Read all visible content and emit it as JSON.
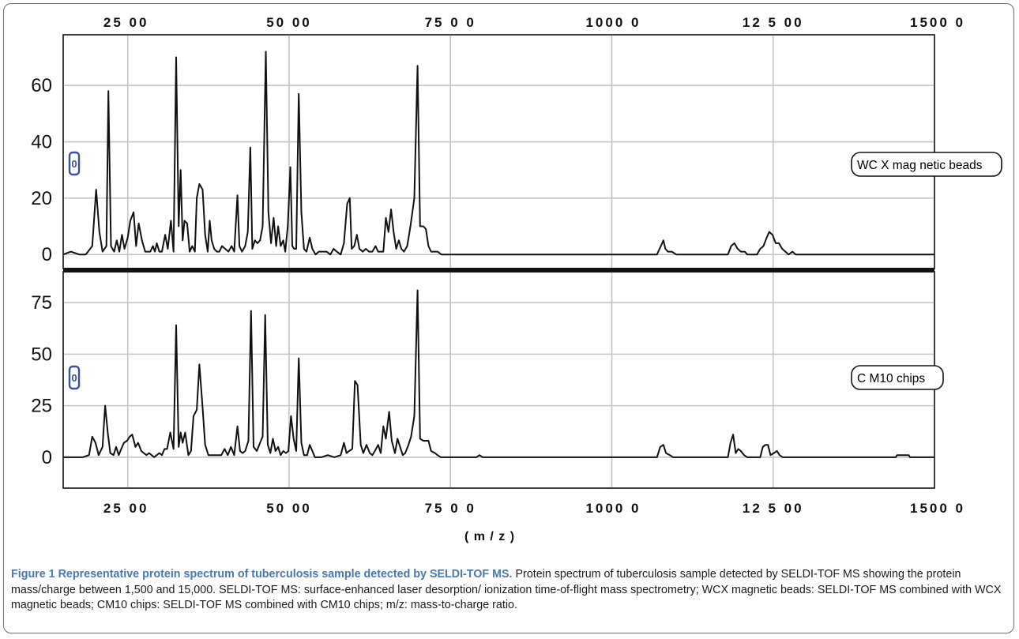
{
  "chart_data": [
    {
      "type": "line",
      "series_label": "WC X mag netic beads",
      "badge": "0",
      "xlim": [
        1500,
        15000
      ],
      "ylim": [
        -5,
        78
      ],
      "yticks": [
        "0",
        "20",
        "40",
        "60"
      ],
      "x_tick_labels": [
        "25 00",
        "50 00",
        "75 0 0",
        "1000 0",
        "12 5 00",
        "1500 0"
      ],
      "grid": true,
      "line_color": "#111111",
      "points": [
        [
          1500,
          0
        ],
        [
          1620,
          1
        ],
        [
          1750,
          0
        ],
        [
          1850,
          0
        ],
        [
          1950,
          3
        ],
        [
          2010,
          23
        ],
        [
          2060,
          8
        ],
        [
          2110,
          1
        ],
        [
          2170,
          3
        ],
        [
          2200,
          58
        ],
        [
          2240,
          3
        ],
        [
          2290,
          1
        ],
        [
          2330,
          5
        ],
        [
          2370,
          1
        ],
        [
          2410,
          7
        ],
        [
          2450,
          2
        ],
        [
          2500,
          6
        ],
        [
          2540,
          12
        ],
        [
          2590,
          15
        ],
        [
          2630,
          3
        ],
        [
          2670,
          11
        ],
        [
          2720,
          5
        ],
        [
          2770,
          1
        ],
        [
          2810,
          1
        ],
        [
          2850,
          1
        ],
        [
          2890,
          3
        ],
        [
          2920,
          1
        ],
        [
          2950,
          4
        ],
        [
          2990,
          1
        ],
        [
          3030,
          1
        ],
        [
          3080,
          7
        ],
        [
          3120,
          2
        ],
        [
          3170,
          12
        ],
        [
          3210,
          1
        ],
        [
          3250,
          70
        ],
        [
          3290,
          10
        ],
        [
          3320,
          30
        ],
        [
          3350,
          5
        ],
        [
          3380,
          12
        ],
        [
          3420,
          11
        ],
        [
          3460,
          1
        ],
        [
          3500,
          3
        ],
        [
          3540,
          1
        ],
        [
          3570,
          20
        ],
        [
          3610,
          25
        ],
        [
          3660,
          23
        ],
        [
          3700,
          7
        ],
        [
          3740,
          1
        ],
        [
          3770,
          12
        ],
        [
          3800,
          5
        ],
        [
          3840,
          2
        ],
        [
          3880,
          1
        ],
        [
          3920,
          1
        ],
        [
          3960,
          3
        ],
        [
          4010,
          2
        ],
        [
          4060,
          1
        ],
        [
          4110,
          3
        ],
        [
          4150,
          1
        ],
        [
          4200,
          21
        ],
        [
          4230,
          3
        ],
        [
          4270,
          1
        ],
        [
          4320,
          3
        ],
        [
          4360,
          8
        ],
        [
          4400,
          38
        ],
        [
          4430,
          2
        ],
        [
          4470,
          5
        ],
        [
          4510,
          4
        ],
        [
          4550,
          5
        ],
        [
          4590,
          10
        ],
        [
          4640,
          72
        ],
        [
          4680,
          15
        ],
        [
          4720,
          4
        ],
        [
          4760,
          13
        ],
        [
          4800,
          3
        ],
        [
          4830,
          10
        ],
        [
          4870,
          3
        ],
        [
          4910,
          5
        ],
        [
          4940,
          1
        ],
        [
          4980,
          10
        ],
        [
          5020,
          31
        ],
        [
          5050,
          3
        ],
        [
          5080,
          2
        ],
        [
          5110,
          2
        ],
        [
          5150,
          57
        ],
        [
          5190,
          15
        ],
        [
          5230,
          2
        ],
        [
          5270,
          1
        ],
        [
          5320,
          6
        ],
        [
          5360,
          2
        ],
        [
          5410,
          0
        ],
        [
          5460,
          1
        ],
        [
          5520,
          1
        ],
        [
          5580,
          1
        ],
        [
          5640,
          0
        ],
        [
          5690,
          2
        ],
        [
          5740,
          1
        ],
        [
          5800,
          0
        ],
        [
          5850,
          4
        ],
        [
          5900,
          18
        ],
        [
          5940,
          20
        ],
        [
          5970,
          2
        ],
        [
          6010,
          3
        ],
        [
          6050,
          7
        ],
        [
          6090,
          2
        ],
        [
          6140,
          1
        ],
        [
          6190,
          2
        ],
        [
          6240,
          1
        ],
        [
          6290,
          1
        ],
        [
          6340,
          3
        ],
        [
          6380,
          1
        ],
        [
          6420,
          1
        ],
        [
          6460,
          1
        ],
        [
          6500,
          13
        ],
        [
          6540,
          8
        ],
        [
          6580,
          16
        ],
        [
          6620,
          8
        ],
        [
          6660,
          2
        ],
        [
          6700,
          5
        ],
        [
          6740,
          2
        ],
        [
          6780,
          1
        ],
        [
          6830,
          3
        ],
        [
          6880,
          10
        ],
        [
          6940,
          20
        ],
        [
          6990,
          67
        ],
        [
          7030,
          10
        ],
        [
          7080,
          10
        ],
        [
          7120,
          9
        ],
        [
          7160,
          3
        ],
        [
          7200,
          1
        ],
        [
          7240,
          1
        ],
        [
          7300,
          1
        ],
        [
          7360,
          0
        ],
        [
          7500,
          0
        ],
        [
          9800,
          0
        ],
        [
          10700,
          0
        ],
        [
          10760,
          3
        ],
        [
          10800,
          5
        ],
        [
          10830,
          2
        ],
        [
          10870,
          1
        ],
        [
          10930,
          1
        ],
        [
          11000,
          0
        ],
        [
          11800,
          0
        ],
        [
          11850,
          3
        ],
        [
          11900,
          4
        ],
        [
          11950,
          2
        ],
        [
          12000,
          1
        ],
        [
          12060,
          1
        ],
        [
          12100,
          0
        ],
        [
          12250,
          0
        ],
        [
          12300,
          2
        ],
        [
          12350,
          3
        ],
        [
          12400,
          6
        ],
        [
          12440,
          8
        ],
        [
          12490,
          7
        ],
        [
          12540,
          4
        ],
        [
          12590,
          4
        ],
        [
          12640,
          2
        ],
        [
          12690,
          1
        ],
        [
          12740,
          0
        ],
        [
          12800,
          1
        ],
        [
          12850,
          0
        ],
        [
          15000,
          0
        ]
      ]
    },
    {
      "type": "line",
      "series_label": "C M10 chips",
      "badge": "0",
      "xlim": [
        1500,
        15000
      ],
      "ylim": [
        -15,
        90
      ],
      "yticks": [
        "0",
        "25",
        "50",
        "75"
      ],
      "x_tick_labels": [
        "25 00",
        "50 00",
        "75 0 0",
        "1000 0",
        "12 5 00",
        "1500 0"
      ],
      "xlabel": "( m / z )",
      "grid": true,
      "line_color": "#111111",
      "points": [
        [
          1500,
          0
        ],
        [
          1650,
          0
        ],
        [
          1800,
          0
        ],
        [
          1900,
          1
        ],
        [
          1950,
          10
        ],
        [
          2000,
          7
        ],
        [
          2050,
          1
        ],
        [
          2110,
          5
        ],
        [
          2150,
          25
        ],
        [
          2190,
          12
        ],
        [
          2230,
          2
        ],
        [
          2280,
          1
        ],
        [
          2320,
          5
        ],
        [
          2360,
          1
        ],
        [
          2400,
          4
        ],
        [
          2440,
          7
        ],
        [
          2490,
          8
        ],
        [
          2530,
          10
        ],
        [
          2570,
          11
        ],
        [
          2620,
          5
        ],
        [
          2660,
          7
        ],
        [
          2710,
          3
        ],
        [
          2750,
          2
        ],
        [
          2790,
          1
        ],
        [
          2830,
          2
        ],
        [
          2870,
          1
        ],
        [
          2910,
          0
        ],
        [
          2950,
          1
        ],
        [
          2990,
          2
        ],
        [
          3030,
          1
        ],
        [
          3070,
          4
        ],
        [
          3110,
          4
        ],
        [
          3160,
          12
        ],
        [
          3210,
          4
        ],
        [
          3250,
          64
        ],
        [
          3290,
          5
        ],
        [
          3320,
          12
        ],
        [
          3350,
          7
        ],
        [
          3390,
          12
        ],
        [
          3440,
          1
        ],
        [
          3480,
          3
        ],
        [
          3520,
          20
        ],
        [
          3570,
          23
        ],
        [
          3610,
          45
        ],
        [
          3660,
          24
        ],
        [
          3700,
          6
        ],
        [
          3750,
          1
        ],
        [
          3790,
          1
        ],
        [
          3850,
          1
        ],
        [
          3900,
          1
        ],
        [
          3950,
          1
        ],
        [
          4000,
          4
        ],
        [
          4050,
          1
        ],
        [
          4100,
          5
        ],
        [
          4150,
          1
        ],
        [
          4200,
          15
        ],
        [
          4240,
          3
        ],
        [
          4280,
          2
        ],
        [
          4320,
          3
        ],
        [
          4370,
          8
        ],
        [
          4410,
          71
        ],
        [
          4450,
          5
        ],
        [
          4500,
          3
        ],
        [
          4550,
          7
        ],
        [
          4590,
          10
        ],
        [
          4630,
          69
        ],
        [
          4670,
          6
        ],
        [
          4710,
          2
        ],
        [
          4750,
          9
        ],
        [
          4790,
          3
        ],
        [
          4830,
          5
        ],
        [
          4870,
          1
        ],
        [
          4910,
          3
        ],
        [
          4950,
          2
        ],
        [
          4990,
          3
        ],
        [
          5030,
          20
        ],
        [
          5070,
          9
        ],
        [
          5110,
          3
        ],
        [
          5150,
          48
        ],
        [
          5190,
          7
        ],
        [
          5230,
          1
        ],
        [
          5280,
          1
        ],
        [
          5320,
          6
        ],
        [
          5360,
          3
        ],
        [
          5400,
          0
        ],
        [
          5500,
          0
        ],
        [
          5600,
          1
        ],
        [
          5700,
          0
        ],
        [
          5800,
          1
        ],
        [
          5850,
          7
        ],
        [
          5890,
          2
        ],
        [
          5930,
          3
        ],
        [
          5980,
          4
        ],
        [
          6020,
          37
        ],
        [
          6060,
          35
        ],
        [
          6110,
          6
        ],
        [
          6150,
          2
        ],
        [
          6200,
          6
        ],
        [
          6250,
          2
        ],
        [
          6290,
          1
        ],
        [
          6330,
          3
        ],
        [
          6380,
          6
        ],
        [
          6420,
          2
        ],
        [
          6460,
          15
        ],
        [
          6500,
          9
        ],
        [
          6550,
          22
        ],
        [
          6590,
          8
        ],
        [
          6640,
          2
        ],
        [
          6680,
          9
        ],
        [
          6720,
          5
        ],
        [
          6760,
          1
        ],
        [
          6800,
          2
        ],
        [
          6850,
          6
        ],
        [
          6890,
          10
        ],
        [
          6940,
          20
        ],
        [
          6990,
          81
        ],
        [
          7030,
          9
        ],
        [
          7080,
          8
        ],
        [
          7120,
          8
        ],
        [
          7160,
          8
        ],
        [
          7200,
          3
        ],
        [
          7260,
          2
        ],
        [
          7300,
          1
        ],
        [
          7350,
          0
        ],
        [
          7900,
          0
        ],
        [
          7950,
          1
        ],
        [
          8000,
          0
        ],
        [
          10700,
          0
        ],
        [
          10750,
          5
        ],
        [
          10800,
          6
        ],
        [
          10840,
          2
        ],
        [
          10900,
          1
        ],
        [
          10950,
          0
        ],
        [
          11800,
          0
        ],
        [
          11840,
          7
        ],
        [
          11880,
          11
        ],
        [
          11920,
          2
        ],
        [
          11960,
          4
        ],
        [
          12000,
          3
        ],
        [
          12050,
          1
        ],
        [
          12100,
          0
        ],
        [
          12300,
          0
        ],
        [
          12340,
          5
        ],
        [
          12380,
          6
        ],
        [
          12420,
          6
        ],
        [
          12460,
          1
        ],
        [
          12510,
          2
        ],
        [
          12560,
          3
        ],
        [
          12600,
          1
        ],
        [
          12650,
          0
        ],
        [
          14400,
          0
        ],
        [
          14420,
          1
        ],
        [
          14600,
          1
        ],
        [
          14620,
          0
        ],
        [
          15000,
          0
        ]
      ]
    }
  ],
  "caption": {
    "label": "Figure 1",
    "title": "Representative protein spectrum of tuberculosis sample detected by SELDI-TOF MS.",
    "body": "Protein spectrum of tuberculosis sample detected by SELDI-TOF MS showing the protein mass/charge between 1,500 and 15,000. SELDI-TOF MS: surface-enhanced laser desorption/ ionization time-of-flight mass spectrometry; WCX magnetic beads: SELDI-TOF MS combined with WCX magnetic beads; CM10 chips: SELDI-TOF MS combined with CM10 chips; m/z: mass-to-charge ratio."
  }
}
